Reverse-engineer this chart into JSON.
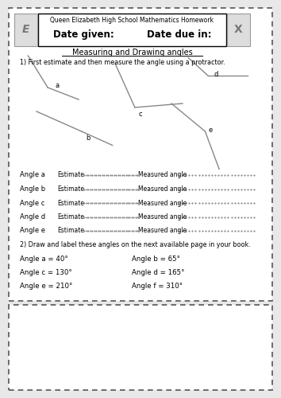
{
  "bg_color": "#e8e8e8",
  "page_bg": "#ffffff",
  "border_color": "#555555",
  "title_line1": "Queen Elizabeth High School Mathematics Homework",
  "title_line2": "Date given:          Date due in:",
  "section_title": "Measuring and Drawing angles",
  "instruction1": "1) First estimate and then measure the angle using a protractor.",
  "instruction2": "2) Draw and label these angles on the next available page in your book.",
  "angle_labels_measure": [
    "Angle a",
    "Angle b",
    "Angle c",
    "Angle d",
    "Angle e"
  ],
  "draw_angles": [
    [
      "Angle a = 40°",
      "Angle b = 65°"
    ],
    [
      "Angle c = 130°",
      "Angle d = 165°"
    ],
    [
      "Angle e = 210°",
      "Angle f = 310°"
    ]
  ],
  "angle_a": {
    "vertex": [
      0.17,
      0.78
    ],
    "ray1": [
      0.1,
      0.86
    ],
    "ray2": [
      0.28,
      0.75
    ]
  },
  "angle_b": {
    "vertex": [
      0.29,
      0.67
    ],
    "ray1": [
      0.13,
      0.72
    ],
    "ray2": [
      0.4,
      0.635
    ]
  },
  "angle_c": {
    "vertex": [
      0.48,
      0.73
    ],
    "ray1": [
      0.41,
      0.84
    ],
    "ray2": [
      0.65,
      0.74
    ]
  },
  "angle_d": {
    "vertex": [
      0.74,
      0.81
    ],
    "ray1": [
      0.67,
      0.855
    ],
    "ray2": [
      0.88,
      0.81
    ]
  },
  "angle_e": {
    "vertex": [
      0.73,
      0.67
    ],
    "ray1": [
      0.61,
      0.74
    ],
    "ray2": [
      0.78,
      0.575
    ]
  }
}
